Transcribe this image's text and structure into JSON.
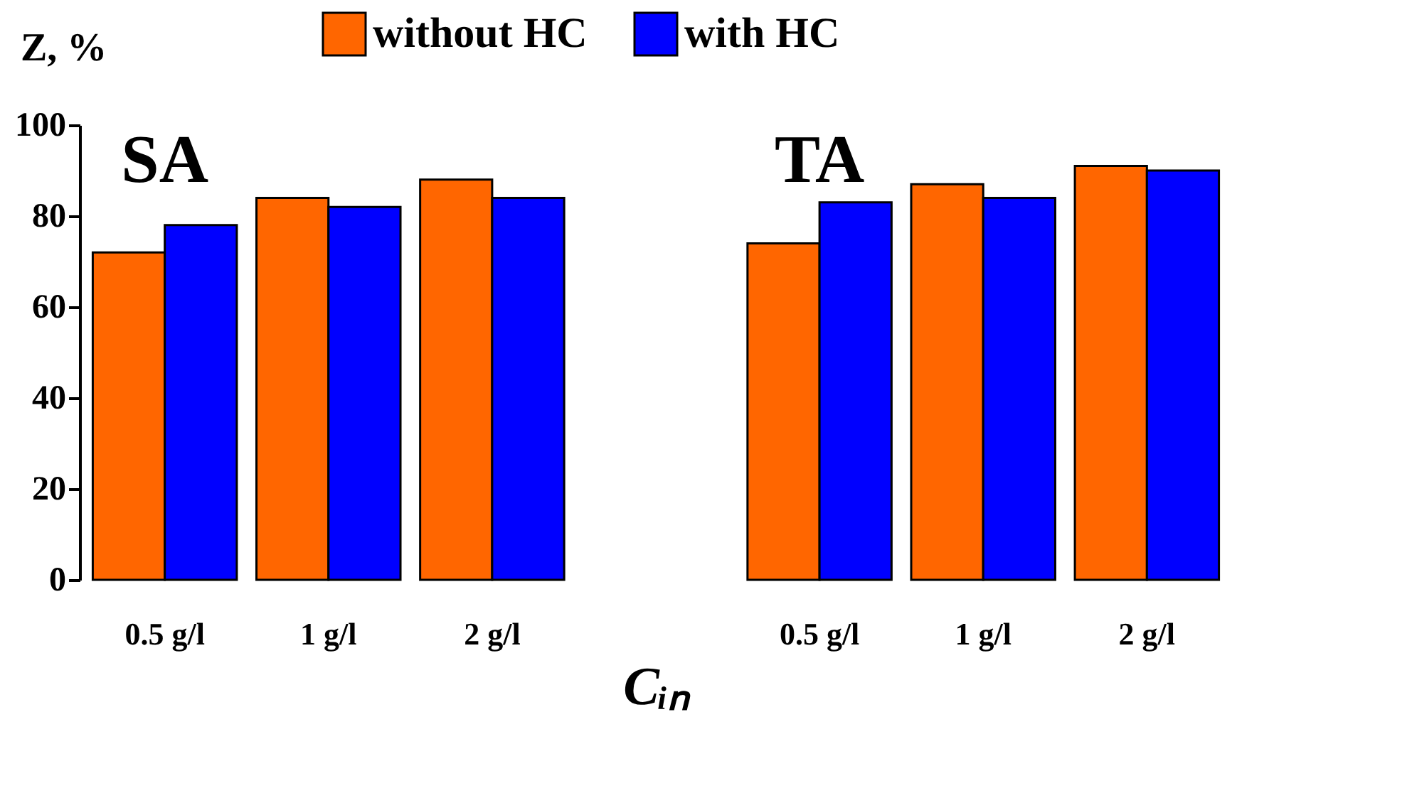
{
  "chart_data": {
    "type": "bar",
    "xlabel": "Cᵢₙ",
    "ylabel": "Z, %",
    "categories": [
      "0.5 g/l",
      "1 g/l",
      "2 g/l",
      null,
      "0.5 g/l",
      "1 g/l",
      "2 g/l"
    ],
    "series": [
      {
        "name": "without HC",
        "color": "#ff6600",
        "values": [
          72,
          84,
          88,
          null,
          74,
          87,
          91
        ]
      },
      {
        "name": "with HC",
        "color": "#0000ff",
        "values": [
          78,
          82,
          84,
          null,
          83,
          84,
          90
        ]
      }
    ],
    "annotations": [
      "SA",
      "TA"
    ],
    "ylim": [
      0,
      100
    ],
    "yticks": [
      0,
      20,
      40,
      60,
      80,
      100
    ],
    "grid": false,
    "legend": "top"
  }
}
